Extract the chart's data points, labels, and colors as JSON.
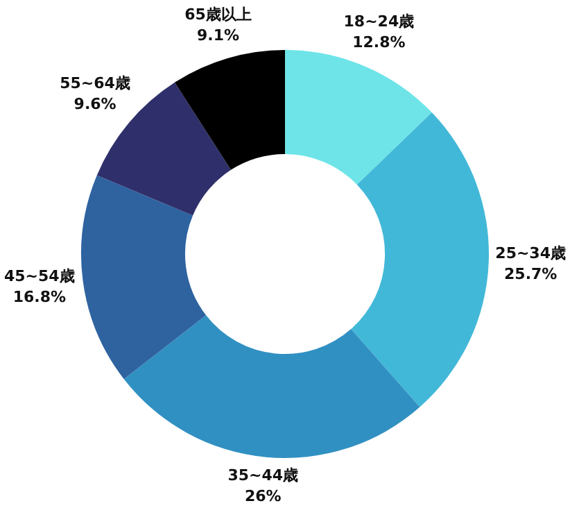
{
  "chart_data": {
    "type": "donut",
    "categories": [
      "18~24歳",
      "25~34歳",
      "35~44歳",
      "45~54歳",
      "55~64歳",
      "65歳以上"
    ],
    "values": [
      12.8,
      25.7,
      26,
      16.8,
      9.6,
      9.1
    ],
    "value_labels": [
      "12.8%",
      "25.7%",
      "26%",
      "16.8%",
      "9.6%",
      "9.1%"
    ],
    "colors": [
      "#6ee4e8",
      "#42b8d8",
      "#3190c2",
      "#2e63a0",
      "#2f2f6b",
      "#000000"
    ],
    "legend": false
  }
}
